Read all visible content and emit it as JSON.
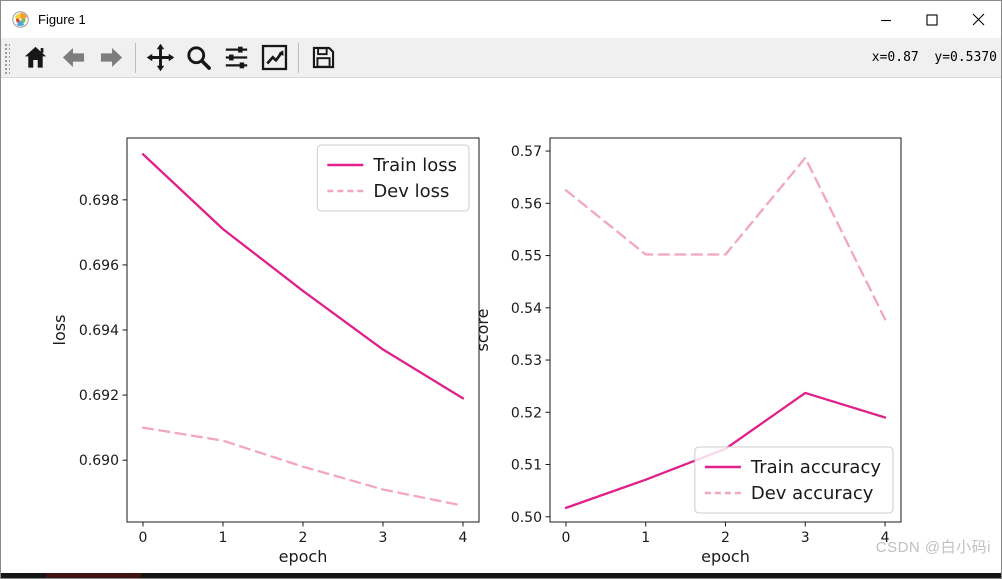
{
  "window": {
    "title": "Figure 1",
    "app_icon": "matplotlib-logo-icon",
    "controls": [
      {
        "name": "minimize",
        "icon": "minimize-icon"
      },
      {
        "name": "maximize",
        "icon": "maximize-icon"
      },
      {
        "name": "close",
        "icon": "close-icon"
      }
    ]
  },
  "toolbar": {
    "buttons": [
      {
        "name": "home",
        "icon": "home-icon"
      },
      {
        "name": "back",
        "icon": "back-arrow-icon"
      },
      {
        "name": "forward",
        "icon": "forward-arrow-icon"
      },
      {
        "name": "pan",
        "icon": "pan-arrows-icon"
      },
      {
        "name": "zoom",
        "icon": "zoom-magnifier-icon"
      },
      {
        "name": "configure-subplots",
        "icon": "sliders-icon"
      },
      {
        "name": "edit-parameters",
        "icon": "chart-edit-icon"
      },
      {
        "name": "save",
        "icon": "save-floppy-icon"
      }
    ],
    "cursor_readout": "x=0.87  y=0.5370"
  },
  "watermark": "CSDN @白小码i",
  "colors": {
    "train_line": "#e0218a",
    "dev_line": "#f3a5c5",
    "toolbar_bg": "#f0f0f0",
    "titlebar_bg": "#ffffff"
  },
  "chart_data": [
    {
      "type": "line",
      "title": "",
      "xlabel": "epoch",
      "ylabel": "loss",
      "x": [
        0,
        1,
        2,
        3,
        4
      ],
      "series": [
        {
          "name": "Train loss",
          "style": "solid",
          "color": "#e0218a",
          "values": [
            0.6994,
            0.6971,
            0.6952,
            0.6934,
            0.6919
          ]
        },
        {
          "name": "Dev loss",
          "style": "dashed",
          "color": "#f3a5c5",
          "values": [
            0.691,
            0.6906,
            0.6898,
            0.6891,
            0.6886
          ]
        }
      ],
      "xlim": [
        -0.2,
        4.2
      ],
      "ylim": [
        0.6881,
        0.6999
      ],
      "xticks": [
        0,
        1,
        2,
        3,
        4
      ],
      "xtick_labels": [
        "0",
        "1",
        "2",
        "3",
        "4"
      ],
      "yticks": [
        0.69,
        0.692,
        0.694,
        0.696,
        0.698
      ],
      "ytick_labels": [
        "0.690",
        "0.692",
        "0.694",
        "0.696",
        "0.698"
      ],
      "legend_position": "upper right",
      "grid": false
    },
    {
      "type": "line",
      "title": "",
      "xlabel": "epoch",
      "ylabel": "score",
      "x": [
        0,
        1,
        2,
        3,
        4
      ],
      "series": [
        {
          "name": "Train accuracy",
          "style": "solid",
          "color": "#e0218a",
          "values": [
            0.5017,
            0.5071,
            0.513,
            0.5237,
            0.519
          ]
        },
        {
          "name": "Dev accuracy",
          "style": "dashed",
          "color": "#f3a5c5",
          "values": [
            0.5625,
            0.5502,
            0.5502,
            0.5687,
            0.5378
          ]
        }
      ],
      "xlim": [
        -0.2,
        4.2
      ],
      "ylim": [
        0.499,
        0.5725
      ],
      "xticks": [
        0,
        1,
        2,
        3,
        4
      ],
      "xtick_labels": [
        "0",
        "1",
        "2",
        "3",
        "4"
      ],
      "yticks": [
        0.5,
        0.51,
        0.52,
        0.53,
        0.54,
        0.55,
        0.56,
        0.57
      ],
      "ytick_labels": [
        "0.50",
        "0.51",
        "0.52",
        "0.53",
        "0.54",
        "0.55",
        "0.56",
        "0.57"
      ],
      "legend_position": "lower right",
      "grid": false
    }
  ]
}
